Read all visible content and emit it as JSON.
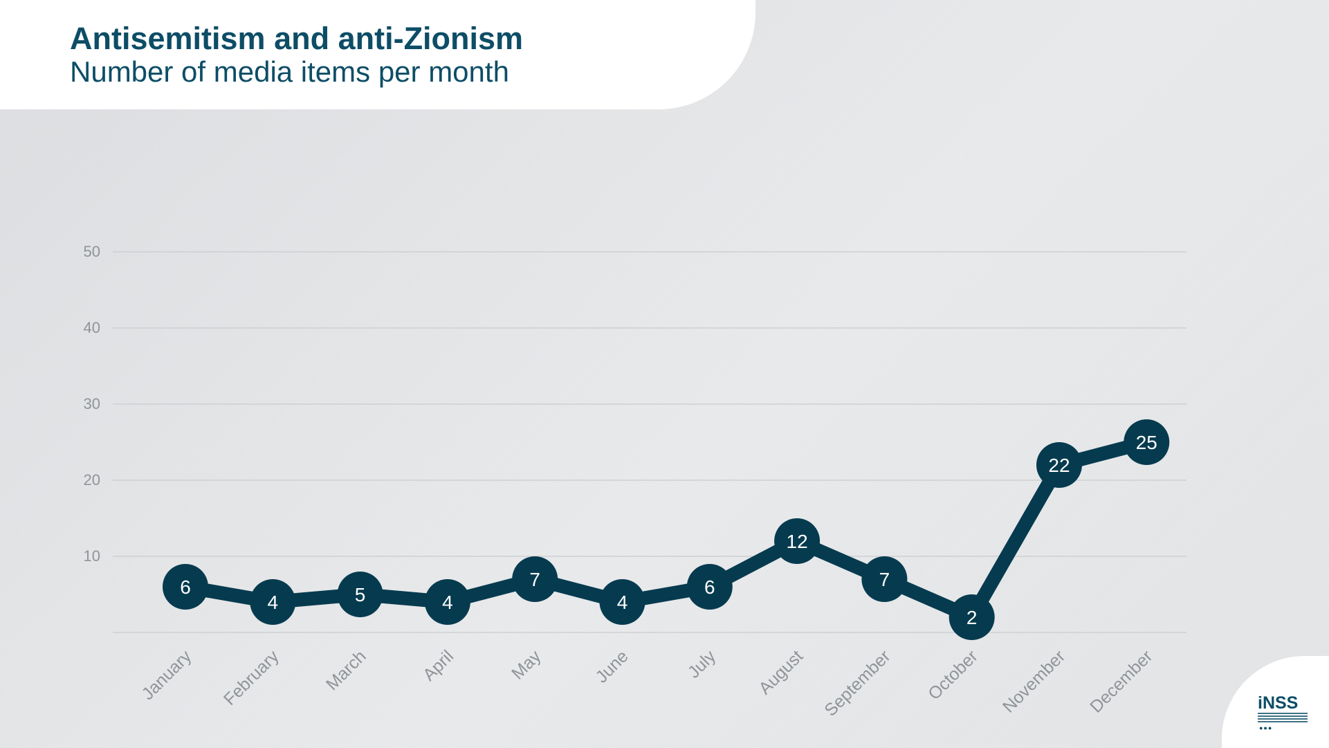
{
  "header": {
    "title": "Antisemitism and anti-Zionism",
    "subtitle": "Number of media items per month"
  },
  "logo": {
    "text": "iNSS",
    "icon": "inss-logo-icon"
  },
  "colors": {
    "accent": "#0d4d66",
    "line": "#063b4f",
    "grid": "#c9cbce",
    "axis_text": "#8f9499",
    "marker_text": "#ffffff"
  },
  "chart_data": {
    "type": "line",
    "title": "Antisemitism and anti-Zionism",
    "subtitle": "Number of media items per month",
    "categories": [
      "January",
      "February",
      "March",
      "April",
      "May",
      "June",
      "July",
      "August",
      "September",
      "October",
      "November",
      "December"
    ],
    "values": [
      6,
      4,
      5,
      4,
      7,
      4,
      6,
      12,
      7,
      2,
      22,
      25
    ],
    "ylim": [
      0,
      50
    ],
    "yticks": [
      10,
      20,
      30,
      40,
      50
    ],
    "grid": true,
    "xlabel": "",
    "ylabel": ""
  }
}
